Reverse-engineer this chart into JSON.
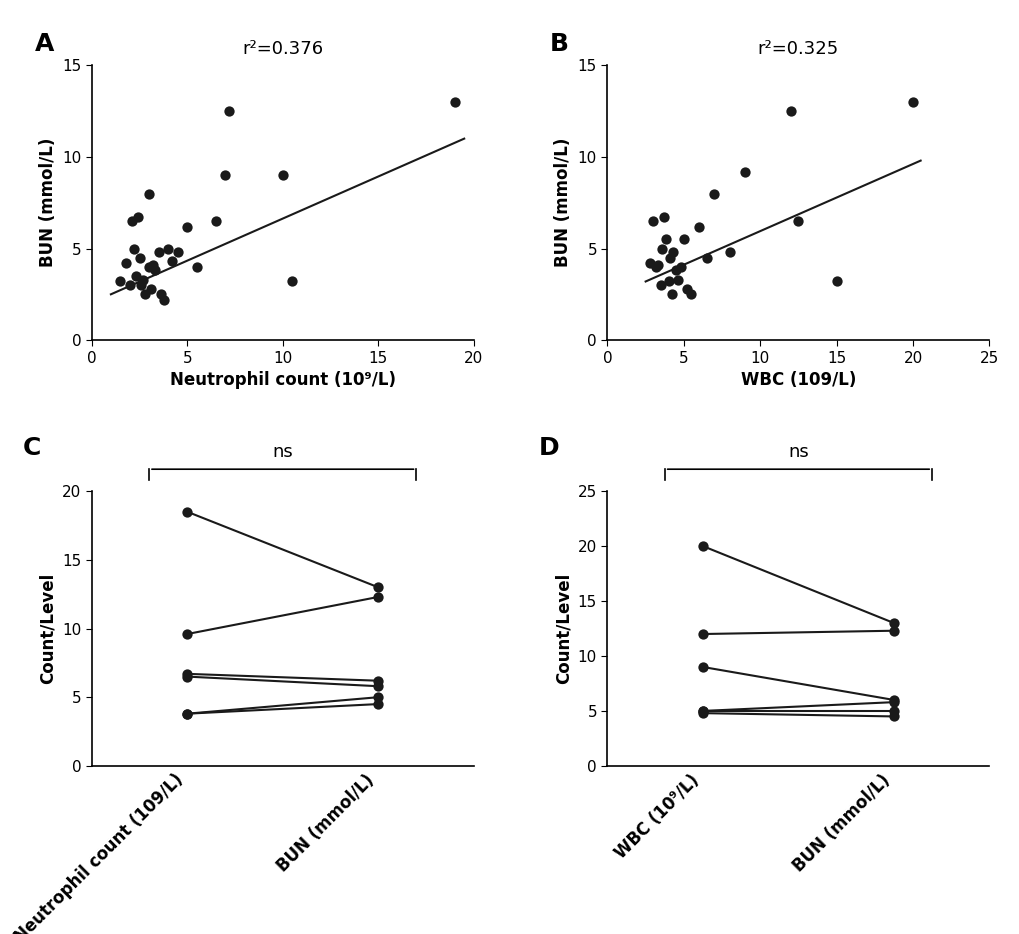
{
  "panel_A": {
    "label": "A",
    "r2": "r²=0.376",
    "scatter_x": [
      1.5,
      1.8,
      2.0,
      2.1,
      2.2,
      2.3,
      2.4,
      2.5,
      2.6,
      2.7,
      2.8,
      3.0,
      3.0,
      3.1,
      3.2,
      3.3,
      3.5,
      3.6,
      3.8,
      4.0,
      4.2,
      4.5,
      5.0,
      5.5,
      6.5,
      7.0,
      7.2,
      10.0,
      10.5,
      19.0
    ],
    "scatter_y": [
      3.2,
      4.2,
      3.0,
      6.5,
      5.0,
      3.5,
      6.7,
      4.5,
      3.0,
      3.3,
      2.5,
      4.0,
      8.0,
      2.8,
      4.1,
      3.8,
      4.8,
      2.5,
      2.2,
      5.0,
      4.3,
      4.8,
      6.2,
      4.0,
      6.5,
      9.0,
      12.5,
      9.0,
      3.2,
      13.0
    ],
    "line_x": [
      1.0,
      19.5
    ],
    "line_y": [
      2.5,
      11.0
    ],
    "xlabel": "Neutrophil count (10⁹/L)",
    "ylabel": "BUN (mmol/L)",
    "xlim": [
      0,
      20
    ],
    "ylim": [
      0,
      15
    ],
    "xticks": [
      0,
      5,
      10,
      15,
      20
    ],
    "yticks": [
      0,
      5,
      10,
      15
    ]
  },
  "panel_B": {
    "label": "B",
    "r2": "r²=0.325",
    "scatter_x": [
      2.8,
      3.0,
      3.2,
      3.3,
      3.5,
      3.6,
      3.7,
      3.8,
      4.0,
      4.1,
      4.2,
      4.3,
      4.5,
      4.6,
      4.8,
      5.0,
      5.2,
      5.5,
      6.0,
      6.5,
      7.0,
      8.0,
      9.0,
      12.0,
      12.5,
      15.0,
      20.0
    ],
    "scatter_y": [
      4.2,
      6.5,
      4.0,
      4.1,
      3.0,
      5.0,
      6.7,
      5.5,
      3.2,
      4.5,
      2.5,
      4.8,
      3.8,
      3.3,
      4.0,
      5.5,
      2.8,
      2.5,
      6.2,
      4.5,
      8.0,
      4.8,
      9.2,
      12.5,
      6.5,
      3.2,
      13.0
    ],
    "line_x": [
      2.5,
      20.5
    ],
    "line_y": [
      3.2,
      9.8
    ],
    "xlabel": "WBC (109/L)",
    "ylabel": "BUN (mmol/L)",
    "xlim": [
      0,
      25
    ],
    "ylim": [
      0,
      15
    ],
    "xticks": [
      0,
      5,
      10,
      15,
      20,
      25
    ],
    "yticks": [
      0,
      5,
      10,
      15
    ]
  },
  "panel_C": {
    "label": "C",
    "ns_text": "ns",
    "ylabel": "Count/Level",
    "xlabels": [
      "Neutrophil count (109/L)",
      "BUN (mmol/L)"
    ],
    "pairs": [
      [
        18.5,
        13.0
      ],
      [
        9.6,
        12.3
      ],
      [
        6.7,
        6.2
      ],
      [
        6.5,
        5.8
      ],
      [
        3.8,
        5.0
      ],
      [
        3.8,
        4.5
      ]
    ],
    "ylim": [
      0,
      20
    ],
    "yticks": [
      0,
      5,
      10,
      15,
      20
    ]
  },
  "panel_D": {
    "label": "D",
    "ns_text": "ns",
    "ylabel": "Count/Level",
    "xlabels": [
      "WBC (10⁹/L)",
      "BUN (mmol/L)"
    ],
    "pairs": [
      [
        20.0,
        13.0
      ],
      [
        12.0,
        12.3
      ],
      [
        9.0,
        6.0
      ],
      [
        5.0,
        5.8
      ],
      [
        5.0,
        5.0
      ],
      [
        4.8,
        4.5
      ]
    ],
    "ylim": [
      0,
      25
    ],
    "yticks": [
      0,
      5,
      10,
      15,
      20,
      25
    ]
  },
  "dot_size": 55,
  "dot_color": "#1a1a1a",
  "line_color": "#1a1a1a",
  "line_width": 1.5,
  "font_size_panel": 18,
  "font_size_r2": 13,
  "font_size_ns": 13,
  "font_size_tick": 11,
  "font_size_axis_label": 12
}
